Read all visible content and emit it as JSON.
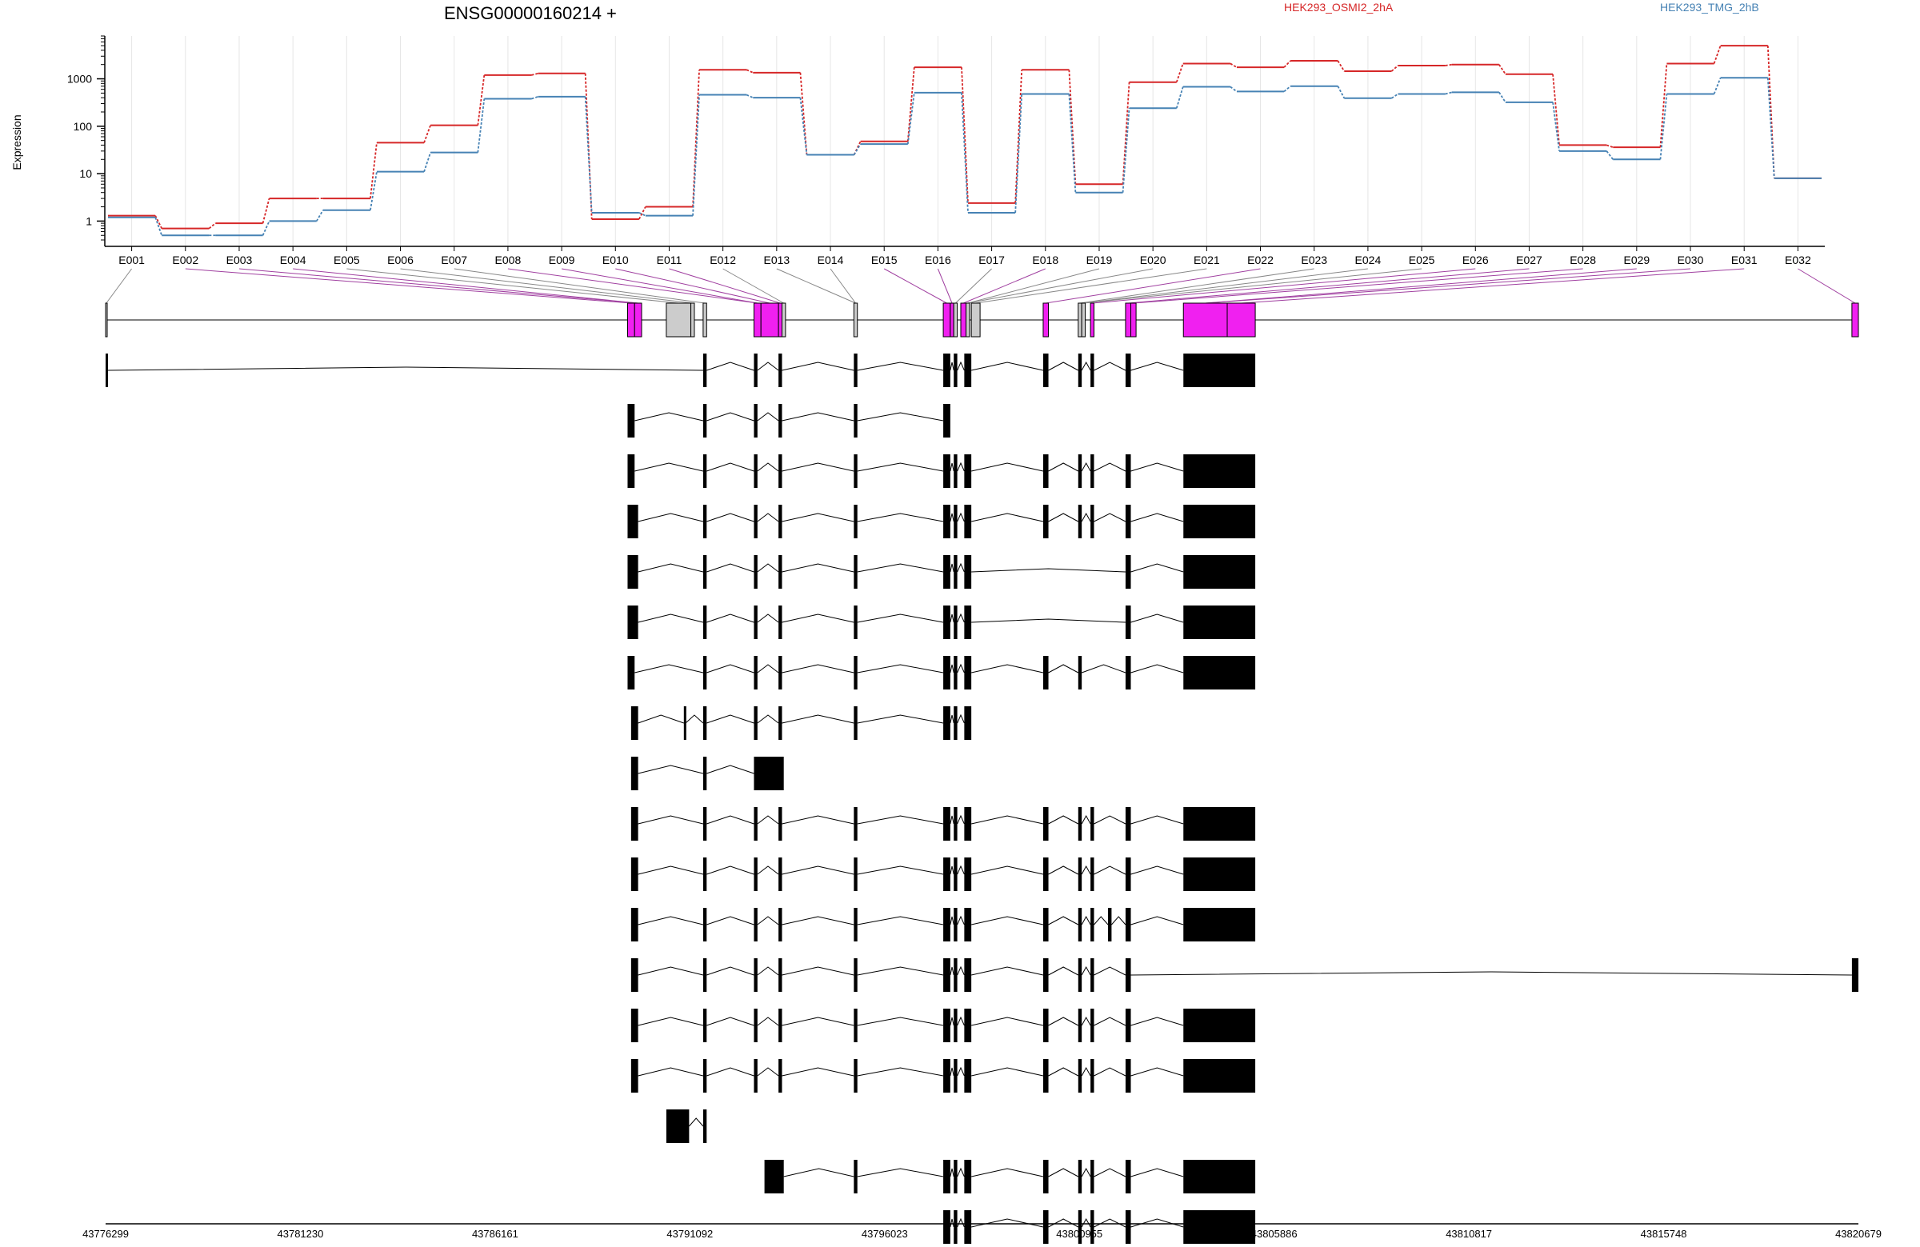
{
  "chart_data": {
    "type": "line",
    "title": "ENSG00000160214 +",
    "ylabel": "Expression",
    "xlabel": "",
    "y_scale": "log",
    "ylim": [
      0.4,
      8000
    ],
    "y_ticks": [
      1,
      10,
      100,
      1000
    ],
    "y_tick_labels": [
      "1",
      "10",
      "100",
      "1000"
    ],
    "grid": "vertical-light",
    "legend_placement": "top",
    "categories": [
      "E001",
      "E002",
      "E003",
      "E004",
      "E005",
      "E006",
      "E007",
      "E008",
      "E009",
      "E010",
      "E011",
      "E012",
      "E013",
      "E014",
      "E015",
      "E016",
      "E017",
      "E018",
      "E019",
      "E020",
      "E021",
      "E022",
      "E023",
      "E024",
      "E025",
      "E026",
      "E027",
      "E028",
      "E029",
      "E030",
      "E031",
      "E032"
    ],
    "series": [
      {
        "name": "HEK293_OSMI2_2hA",
        "color": "#d62728",
        "values": [
          1.3,
          0.7,
          0.9,
          3,
          3,
          45,
          105,
          1200,
          1300,
          1.1,
          2,
          1550,
          1350,
          25,
          48,
          1750,
          2.4,
          1550,
          6,
          850,
          2100,
          1750,
          2400,
          1450,
          1900,
          2000,
          1250,
          40,
          36,
          2100,
          5000,
          8
        ]
      },
      {
        "name": "HEK293_TMG_2hB",
        "color": "#4682b4",
        "values": [
          1.2,
          0.5,
          0.5,
          1,
          1.7,
          11,
          28,
          380,
          420,
          1.5,
          1.3,
          460,
          400,
          25,
          42,
          510,
          1.5,
          480,
          4,
          240,
          680,
          540,
          700,
          390,
          480,
          520,
          320,
          30,
          20,
          480,
          1050,
          8
        ]
      }
    ],
    "genomic_ticks": [
      "43776299",
      "43781230",
      "43786161",
      "43791092",
      "43796023",
      "43800955",
      "43805886",
      "43810817",
      "43815748",
      "43820679"
    ],
    "exon_bins": [
      {
        "s": 0,
        "e": 0.0008,
        "sig": 0,
        "g": 1
      },
      {
        "s": 0.2978,
        "e": 0.3018,
        "sig": 1,
        "g": 0
      },
      {
        "s": 0.3018,
        "e": 0.3058,
        "sig": 1,
        "g": 0
      },
      {
        "s": 0.3199,
        "e": 0.3339,
        "sig": 0,
        "g": 0
      },
      {
        "s": 0.3339,
        "e": 0.3359,
        "sig": 0,
        "g": 0
      },
      {
        "s": 0.3409,
        "e": 0.3429,
        "sig": 0,
        "g": 1
      },
      {
        "s": 0.3699,
        "e": 0.3739,
        "sig": 1,
        "g": 0
      },
      {
        "s": 0.3739,
        "e": 0.3839,
        "sig": 1,
        "g": 0
      },
      {
        "s": 0.3839,
        "e": 0.3859,
        "sig": 1,
        "g": 0
      },
      {
        "s": 0.3859,
        "e": 0.3879,
        "sig": 0,
        "g": 0
      },
      {
        "s": 0.4269,
        "e": 0.4289,
        "sig": 0,
        "g": 1
      },
      {
        "s": 0.4779,
        "e": 0.4819,
        "sig": 1,
        "g": 0
      },
      {
        "s": 0.4819,
        "e": 0.4839,
        "sig": 1,
        "g": 0
      },
      {
        "s": 0.4839,
        "e": 0.4859,
        "sig": 0,
        "g": 0
      },
      {
        "s": 0.4879,
        "e": 0.4909,
        "sig": 1,
        "g": 0
      },
      {
        "s": 0.4909,
        "e": 0.4929,
        "sig": 0,
        "g": 0
      },
      {
        "s": 0.4939,
        "e": 0.4989,
        "sig": 0,
        "g": 0
      },
      {
        "s": 0.5349,
        "e": 0.5379,
        "sig": 1,
        "g": 0
      },
      {
        "s": 0.5549,
        "e": 0.5569,
        "sig": 0,
        "g": 0
      },
      {
        "s": 0.5569,
        "e": 0.5589,
        "sig": 0,
        "g": 0
      },
      {
        "s": 0.5619,
        "e": 0.5639,
        "sig": 1,
        "g": 0
      },
      {
        "s": 0.5819,
        "e": 0.5849,
        "sig": 1,
        "g": 0
      },
      {
        "s": 0.5849,
        "e": 0.5879,
        "sig": 1,
        "g": 0
      },
      {
        "s": 0.6149,
        "e": 0.6399,
        "sig": 1,
        "g": 0
      },
      {
        "s": 0.6399,
        "e": 0.6559,
        "sig": 1,
        "g": 0
      },
      {
        "s": 0.9963,
        "e": 1.0,
        "sig": 1,
        "g": 0
      }
    ],
    "transcripts": [
      [
        [
          0,
          0.0012
        ],
        [
          0.3409,
          0.3429
        ],
        [
          0.3699,
          0.3719
        ],
        [
          0.3839,
          0.3859
        ],
        [
          0.4269,
          0.4289
        ],
        [
          0.4779,
          0.4819
        ],
        [
          0.4839,
          0.4859
        ],
        [
          0.4899,
          0.4939
        ],
        [
          0.5349,
          0.5379
        ],
        [
          0.5549,
          0.5569
        ],
        [
          0.5619,
          0.5639
        ],
        [
          0.5819,
          0.5849
        ],
        [
          0.6149,
          0.6559
        ]
      ],
      [
        [
          0.2978,
          0.3018
        ],
        [
          0.3409,
          0.3429
        ],
        [
          0.3699,
          0.3719
        ],
        [
          0.3839,
          0.3859
        ],
        [
          0.4269,
          0.4289
        ],
        [
          0.4779,
          0.4819
        ]
      ],
      [
        [
          0.2978,
          0.3018
        ],
        [
          0.3409,
          0.3429
        ],
        [
          0.3699,
          0.3719
        ],
        [
          0.3839,
          0.3859
        ],
        [
          0.4269,
          0.4289
        ],
        [
          0.4779,
          0.4819
        ],
        [
          0.4839,
          0.4859
        ],
        [
          0.4899,
          0.4939
        ],
        [
          0.5349,
          0.5379
        ],
        [
          0.5549,
          0.5569
        ],
        [
          0.5619,
          0.5639
        ],
        [
          0.5819,
          0.5849
        ],
        [
          0.6149,
          0.6559
        ]
      ],
      [
        [
          0.2978,
          0.3038
        ],
        [
          0.3409,
          0.3429
        ],
        [
          0.3699,
          0.3719
        ],
        [
          0.3839,
          0.3859
        ],
        [
          0.4269,
          0.4289
        ],
        [
          0.4779,
          0.4819
        ],
        [
          0.4839,
          0.4859
        ],
        [
          0.4899,
          0.4939
        ],
        [
          0.5349,
          0.5379
        ],
        [
          0.5549,
          0.5569
        ],
        [
          0.5619,
          0.5639
        ],
        [
          0.5819,
          0.5849
        ],
        [
          0.6149,
          0.6559
        ]
      ],
      [
        [
          0.2978,
          0.3038
        ],
        [
          0.3409,
          0.3429
        ],
        [
          0.3699,
          0.3719
        ],
        [
          0.3839,
          0.3859
        ],
        [
          0.4269,
          0.4289
        ],
        [
          0.4779,
          0.4819
        ],
        [
          0.4839,
          0.4859
        ],
        [
          0.4899,
          0.4939
        ],
        [
          0.5819,
          0.5849
        ],
        [
          0.6149,
          0.6559
        ]
      ],
      [
        [
          0.2978,
          0.3038
        ],
        [
          0.3409,
          0.3429
        ],
        [
          0.3699,
          0.3719
        ],
        [
          0.3839,
          0.3859
        ],
        [
          0.4269,
          0.4289
        ],
        [
          0.4779,
          0.4819
        ],
        [
          0.4839,
          0.4859
        ],
        [
          0.4899,
          0.4939
        ],
        [
          0.5819,
          0.5849
        ],
        [
          0.6149,
          0.6559
        ]
      ],
      [
        [
          0.2978,
          0.3018
        ],
        [
          0.3409,
          0.3429
        ],
        [
          0.3699,
          0.3719
        ],
        [
          0.3839,
          0.3859
        ],
        [
          0.4269,
          0.4289
        ],
        [
          0.4779,
          0.4819
        ],
        [
          0.4839,
          0.4859
        ],
        [
          0.4899,
          0.4939
        ],
        [
          0.5349,
          0.5379
        ],
        [
          0.5549,
          0.5569
        ],
        [
          0.5819,
          0.5849
        ],
        [
          0.6149,
          0.6559
        ]
      ],
      [
        [
          0.2998,
          0.3038
        ],
        [
          0.3299,
          0.3309
        ],
        [
          0.3409,
          0.3429
        ],
        [
          0.3699,
          0.3719
        ],
        [
          0.3839,
          0.3859
        ],
        [
          0.4269,
          0.4289
        ],
        [
          0.4779,
          0.4819
        ],
        [
          0.4839,
          0.4859
        ],
        [
          0.4899,
          0.4939
        ]
      ],
      [
        [
          0.2998,
          0.3038
        ],
        [
          0.3409,
          0.3429
        ],
        [
          0.3699,
          0.3869
        ]
      ],
      [
        [
          0.2998,
          0.3038
        ],
        [
          0.3409,
          0.3429
        ],
        [
          0.3699,
          0.3719
        ],
        [
          0.3839,
          0.3859
        ],
        [
          0.4269,
          0.4289
        ],
        [
          0.4779,
          0.4819
        ],
        [
          0.4839,
          0.4859
        ],
        [
          0.4899,
          0.4939
        ],
        [
          0.5349,
          0.5379
        ],
        [
          0.5549,
          0.5569
        ],
        [
          0.5619,
          0.5639
        ],
        [
          0.5819,
          0.5849
        ],
        [
          0.6149,
          0.6559
        ]
      ],
      [
        [
          0.2998,
          0.3038
        ],
        [
          0.3409,
          0.3429
        ],
        [
          0.3699,
          0.3719
        ],
        [
          0.3839,
          0.3859
        ],
        [
          0.4269,
          0.4289
        ],
        [
          0.4779,
          0.4819
        ],
        [
          0.4839,
          0.4859
        ],
        [
          0.4899,
          0.4939
        ],
        [
          0.5349,
          0.5379
        ],
        [
          0.5549,
          0.5569
        ],
        [
          0.5619,
          0.5639
        ],
        [
          0.5819,
          0.5849
        ],
        [
          0.6149,
          0.6559
        ]
      ],
      [
        [
          0.2998,
          0.3038
        ],
        [
          0.3409,
          0.3429
        ],
        [
          0.3699,
          0.3719
        ],
        [
          0.3839,
          0.3859
        ],
        [
          0.4269,
          0.4289
        ],
        [
          0.4779,
          0.4819
        ],
        [
          0.4839,
          0.4859
        ],
        [
          0.4899,
          0.4939
        ],
        [
          0.5349,
          0.5379
        ],
        [
          0.5549,
          0.5569
        ],
        [
          0.5619,
          0.5639
        ],
        [
          0.5719,
          0.5739
        ],
        [
          0.5819,
          0.5849
        ],
        [
          0.6149,
          0.6559
        ]
      ],
      [
        [
          0.2998,
          0.3038
        ],
        [
          0.3409,
          0.3429
        ],
        [
          0.3699,
          0.3719
        ],
        [
          0.3839,
          0.3859
        ],
        [
          0.4269,
          0.4289
        ],
        [
          0.4779,
          0.4819
        ],
        [
          0.4839,
          0.4859
        ],
        [
          0.4899,
          0.4939
        ],
        [
          0.5349,
          0.5379
        ],
        [
          0.5549,
          0.5569
        ],
        [
          0.5619,
          0.5639
        ],
        [
          0.5819,
          0.5849
        ],
        [
          0.9963,
          1.0
        ]
      ],
      [
        [
          0.2998,
          0.3038
        ],
        [
          0.3409,
          0.3429
        ],
        [
          0.3699,
          0.3719
        ],
        [
          0.3839,
          0.3859
        ],
        [
          0.4269,
          0.4289
        ],
        [
          0.4779,
          0.4819
        ],
        [
          0.4839,
          0.4859
        ],
        [
          0.4899,
          0.4939
        ],
        [
          0.5349,
          0.5379
        ],
        [
          0.5549,
          0.5569
        ],
        [
          0.5619,
          0.5639
        ],
        [
          0.5819,
          0.5849
        ],
        [
          0.6149,
          0.6559
        ]
      ],
      [
        [
          0.2998,
          0.3038
        ],
        [
          0.3409,
          0.3429
        ],
        [
          0.3699,
          0.3719
        ],
        [
          0.3839,
          0.3859
        ],
        [
          0.4269,
          0.4289
        ],
        [
          0.4779,
          0.4819
        ],
        [
          0.4839,
          0.4859
        ],
        [
          0.4899,
          0.4939
        ],
        [
          0.5349,
          0.5379
        ],
        [
          0.5549,
          0.5569
        ],
        [
          0.5619,
          0.5639
        ],
        [
          0.5819,
          0.5849
        ],
        [
          0.6149,
          0.6559
        ]
      ],
      [
        [
          0.3199,
          0.3329
        ],
        [
          0.3409,
          0.3429
        ]
      ],
      [
        [
          0.3759,
          0.3869
        ],
        [
          0.4269,
          0.4289
        ],
        [
          0.4779,
          0.4819
        ],
        [
          0.4839,
          0.4859
        ],
        [
          0.4899,
          0.4939
        ],
        [
          0.5349,
          0.5379
        ],
        [
          0.5549,
          0.5569
        ],
        [
          0.5619,
          0.5639
        ],
        [
          0.5819,
          0.5849
        ],
        [
          0.6149,
          0.6559
        ]
      ],
      [
        [
          0.4779,
          0.4819
        ],
        [
          0.4839,
          0.4859
        ],
        [
          0.4899,
          0.4939
        ],
        [
          0.5349,
          0.5379
        ],
        [
          0.5549,
          0.5569
        ],
        [
          0.5619,
          0.5639
        ],
        [
          0.5819,
          0.5849
        ],
        [
          0.6149,
          0.6559
        ]
      ]
    ],
    "colors": {
      "significant": "#f020f0",
      "nonsignificant": "#cccccc",
      "exon": "#000000",
      "connector_sig": "#a040a0",
      "connector_nonsig": "#888888"
    }
  }
}
